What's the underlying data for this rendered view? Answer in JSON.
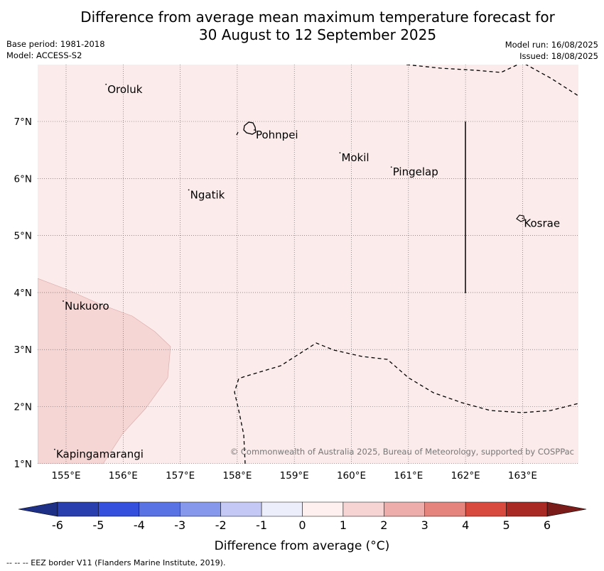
{
  "title": {
    "line1": "Difference from average mean maximum temperature forecast for",
    "line2": "30 August to 12 September 2025"
  },
  "meta": {
    "base_period": "Base period: 1981-2018",
    "model": "Model: ACCESS-S2",
    "model_run": "Model run: 16/08/2025",
    "issued": "Issued: 18/08/2025"
  },
  "map": {
    "lon_range": [
      154.5,
      164.0
    ],
    "lat_range": [
      1.0,
      8.0
    ],
    "lon_ticks": [
      "155°E",
      "156°E",
      "157°E",
      "158°E",
      "159°E",
      "160°E",
      "161°E",
      "162°E",
      "163°E"
    ],
    "lat_ticks": [
      "7°N",
      "6°N",
      "5°N",
      "4°N",
      "3°N",
      "2°N",
      "1°N"
    ],
    "places": [
      {
        "name": "Oroluk",
        "lon": 155.7,
        "lat": 7.65
      },
      {
        "name": "Pohnpei",
        "lon": 158.3,
        "lat": 6.85
      },
      {
        "name": "Mokil",
        "lon": 159.8,
        "lat": 6.45
      },
      {
        "name": "Pingelap",
        "lon": 160.7,
        "lat": 6.2
      },
      {
        "name": "Ngatik",
        "lon": 157.15,
        "lat": 5.8
      },
      {
        "name": "Kosrae",
        "lon": 163.0,
        "lat": 5.3
      },
      {
        "name": "Nukuoro",
        "lon": 154.95,
        "lat": 3.85
      },
      {
        "name": "Kapingamarangi",
        "lon": 154.8,
        "lat": 1.25
      }
    ],
    "anomaly_background_range": "0 to 1 °C",
    "anomaly_patch_range": "1 to 2 °C",
    "copyright": "© Commonwealth of Australia 2025, Bureau of Meteorology, supported by COSPPac"
  },
  "colorbar": {
    "label": "Difference from average (°C)",
    "ticks": [
      "-6",
      "-5",
      "-4",
      "-3",
      "-2",
      "-1",
      "0",
      "1",
      "2",
      "3",
      "4",
      "5",
      "6"
    ],
    "colors": [
      "#2a3fae",
      "#3550dc",
      "#5a73e4",
      "#8598ec",
      "#c3c9f4",
      "#eceefb",
      "#fdf0ee",
      "#f6d4d4",
      "#edaeab",
      "#e5847c",
      "#d84a3e",
      "#a92a24"
    ],
    "under_color": "#1e2f86",
    "over_color": "#7a1d1a"
  },
  "footnote": "--  --  -- EEZ border V11 (Flanders Marine Institute, 2019)."
}
